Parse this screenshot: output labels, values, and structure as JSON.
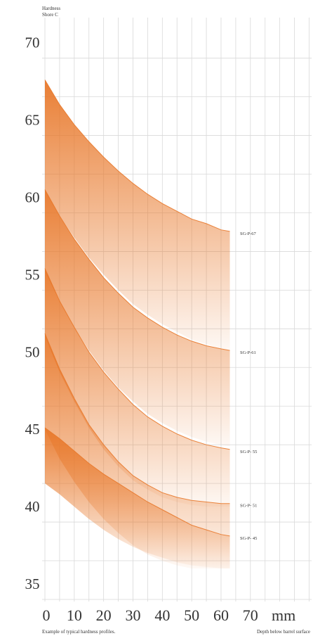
{
  "chart_data": {
    "type": "area",
    "ylabel_lines": [
      "Hardness",
      "Shore C"
    ],
    "xlabel": "Depth below barrel surface",
    "x_unit": "mm",
    "caption": "Example of typical hardness profiles.",
    "xlim": [
      0,
      75
    ],
    "ylim": [
      34,
      71
    ],
    "x_ticks": [
      0,
      10,
      20,
      30,
      40,
      50,
      60,
      70
    ],
    "y_ticks": [
      35,
      40,
      45,
      50,
      55,
      60,
      65,
      70
    ],
    "grid": true,
    "band_color": "#e8782a",
    "x": [
      0,
      5,
      10,
      15,
      20,
      25,
      30,
      35,
      40,
      45,
      50,
      55,
      60,
      63
    ],
    "series": [
      {
        "name": "SG-P-67",
        "upper": [
          67.6,
          66.0,
          64.7,
          63.6,
          62.6,
          61.7,
          60.9,
          60.2,
          59.6,
          59.1,
          58.6,
          58.3,
          57.9,
          57.8
        ],
        "lower": [
          60.4,
          58.8,
          57.4,
          56.1,
          55.0,
          54.0,
          53.1,
          52.4,
          51.8,
          51.3,
          50.8,
          50.5,
          50.2,
          50.1
        ]
      },
      {
        "name": "SG-P-61",
        "upper": [
          60.5,
          58.8,
          57.3,
          56.0,
          54.8,
          53.8,
          52.9,
          52.2,
          51.6,
          51.1,
          50.7,
          50.4,
          50.2,
          50.1
        ],
        "lower": [
          55.2,
          53.3,
          51.6,
          50.1,
          48.8,
          47.7,
          46.8,
          46.0,
          45.4,
          44.9,
          44.5,
          44.2,
          44.0,
          43.9
        ]
      },
      {
        "name": "SG-P- 55",
        "upper": [
          55.4,
          53.3,
          51.6,
          50.0,
          48.7,
          47.6,
          46.6,
          45.8,
          45.2,
          44.7,
          44.3,
          44.0,
          43.8,
          43.7
        ],
        "lower": [
          51.0,
          48.7,
          46.8,
          45.1,
          43.7,
          42.6,
          41.7,
          41.1,
          40.6,
          40.3,
          40.1,
          40.0,
          40.0,
          40.0
        ]
      },
      {
        "name": "SG-P- 51",
        "upper": [
          51.2,
          48.9,
          47.0,
          45.3,
          44.0,
          42.9,
          42.0,
          41.4,
          40.9,
          40.6,
          40.4,
          40.3,
          40.2,
          40.2
        ],
        "lower": [
          45.0,
          43.1,
          41.6,
          40.3,
          39.2,
          38.3,
          37.5,
          36.9,
          36.5,
          36.2,
          36.0,
          36.0,
          36.0,
          36.0
        ]
      },
      {
        "name": "SG-P- 45",
        "upper": [
          45.1,
          44.4,
          43.6,
          42.8,
          42.1,
          41.5,
          40.9,
          40.3,
          39.8,
          39.3,
          38.8,
          38.5,
          38.2,
          38.1
        ],
        "lower": [
          41.5,
          40.8,
          40.0,
          39.2,
          38.5,
          37.9,
          37.4,
          37.0,
          36.7,
          36.4,
          36.2,
          36.1,
          36.0,
          36.0
        ]
      }
    ]
  }
}
